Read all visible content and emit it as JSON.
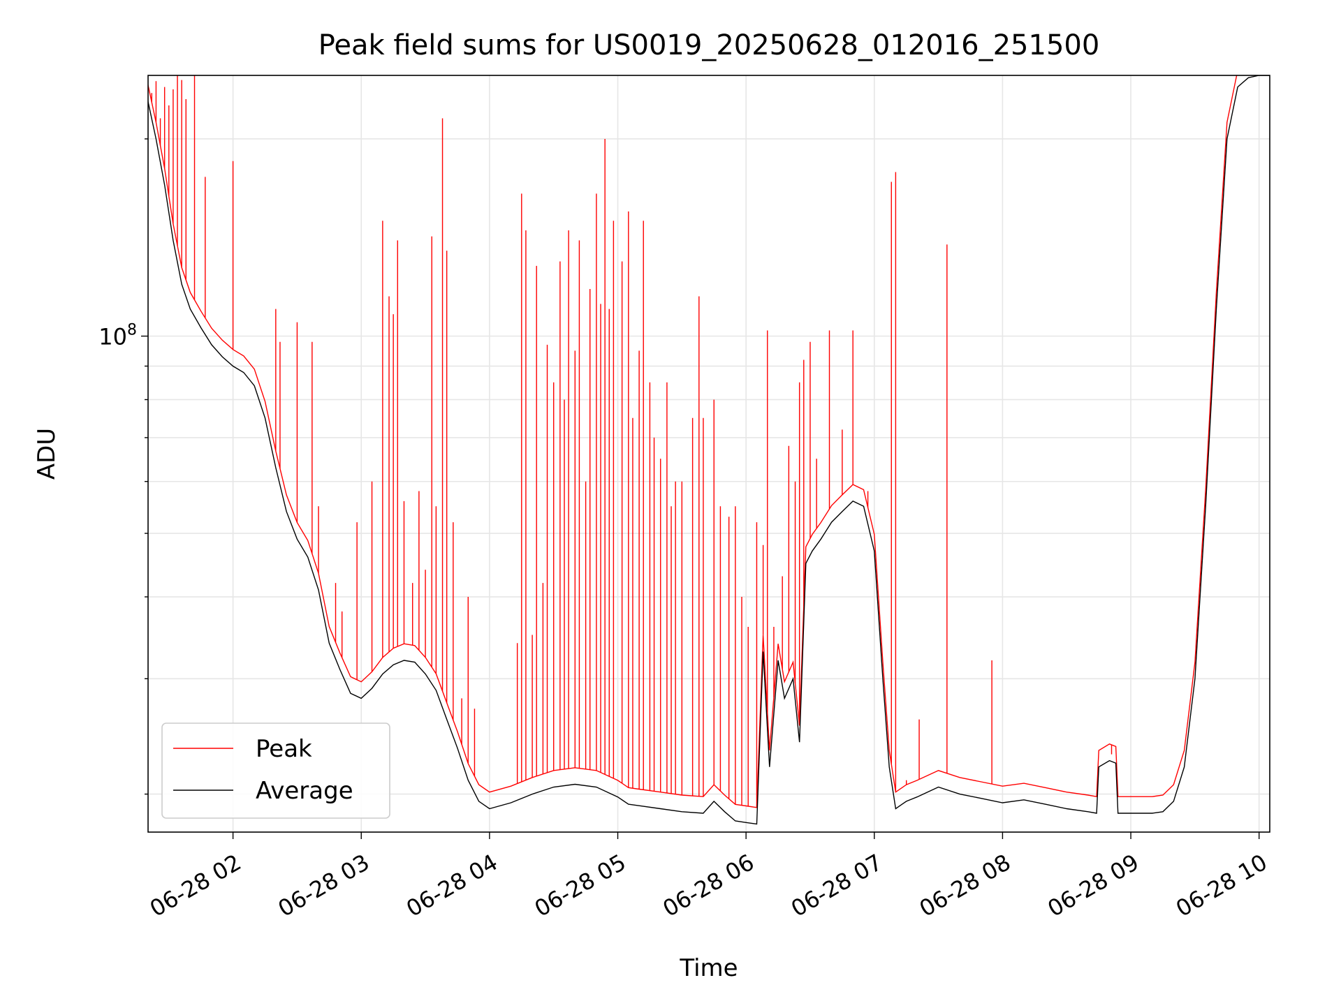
{
  "chart_data": {
    "type": "line",
    "title": "Peak field sums for US0019_20250628_012016_251500",
    "xlabel": "Time",
    "ylabel": "ADU",
    "y_scale": "log",
    "ylim": [
      17500000,
      250000000
    ],
    "xlim": [
      "2025-06-28 01:20:16",
      "2025-06-28 10:05:00"
    ],
    "x_ticks": [
      {
        "label": "06-28 02",
        "value": "2025-06-28 02:00"
      },
      {
        "label": "06-28 03",
        "value": "2025-06-28 03:00"
      },
      {
        "label": "06-28 04",
        "value": "2025-06-28 04:00"
      },
      {
        "label": "06-28 05",
        "value": "2025-06-28 05:00"
      },
      {
        "label": "06-28 06",
        "value": "2025-06-28 06:00"
      },
      {
        "label": "06-28 07",
        "value": "2025-06-28 07:00"
      },
      {
        "label": "06-28 08",
        "value": "2025-06-28 08:00"
      },
      {
        "label": "06-28 09",
        "value": "2025-06-28 09:00"
      },
      {
        "label": "06-28 10",
        "value": "2025-06-28 10:00"
      }
    ],
    "y_ticks": [
      {
        "label_base": "10",
        "label_exp": "8",
        "value": 100000000
      }
    ],
    "grid": true,
    "legend_position": "lower-left",
    "colors": {
      "peak": "#ff0000",
      "average": "#000000",
      "grid": "#e6e6e6"
    },
    "series": [
      {
        "name": "Average",
        "color": "#000000",
        "x": [
          "2025-06-28 01:20",
          "2025-06-28 01:24",
          "2025-06-28 01:28",
          "2025-06-28 01:32",
          "2025-06-28 01:36",
          "2025-06-28 01:40",
          "2025-06-28 01:45",
          "2025-06-28 01:50",
          "2025-06-28 01:55",
          "2025-06-28 02:00",
          "2025-06-28 02:05",
          "2025-06-28 02:10",
          "2025-06-28 02:15",
          "2025-06-28 02:20",
          "2025-06-28 02:25",
          "2025-06-28 02:30",
          "2025-06-28 02:35",
          "2025-06-28 02:40",
          "2025-06-28 02:45",
          "2025-06-28 02:50",
          "2025-06-28 02:55",
          "2025-06-28 03:00",
          "2025-06-28 03:05",
          "2025-06-28 03:10",
          "2025-06-28 03:15",
          "2025-06-28 03:20",
          "2025-06-28 03:25",
          "2025-06-28 03:30",
          "2025-06-28 03:35",
          "2025-06-28 03:40",
          "2025-06-28 03:45",
          "2025-06-28 03:50",
          "2025-06-28 03:55",
          "2025-06-28 04:00",
          "2025-06-28 04:10",
          "2025-06-28 04:20",
          "2025-06-28 04:30",
          "2025-06-28 04:40",
          "2025-06-28 04:50",
          "2025-06-28 05:00",
          "2025-06-28 05:05",
          "2025-06-28 05:10",
          "2025-06-28 05:20",
          "2025-06-28 05:30",
          "2025-06-28 05:40",
          "2025-06-28 05:45",
          "2025-06-28 05:50",
          "2025-06-28 05:55",
          "2025-06-28 06:00",
          "2025-06-28 06:05",
          "2025-06-28 06:08",
          "2025-06-28 06:11",
          "2025-06-28 06:15",
          "2025-06-28 06:18",
          "2025-06-28 06:22",
          "2025-06-28 06:25",
          "2025-06-28 06:28",
          "2025-06-28 06:31",
          "2025-06-28 06:35",
          "2025-06-28 06:40",
          "2025-06-28 06:45",
          "2025-06-28 06:50",
          "2025-06-28 06:55",
          "2025-06-28 07:00",
          "2025-06-28 07:04",
          "2025-06-28 07:07",
          "2025-06-28 07:10",
          "2025-06-28 07:13",
          "2025-06-28 07:15",
          "2025-06-28 07:20",
          "2025-06-28 07:30",
          "2025-06-28 07:40",
          "2025-06-28 07:50",
          "2025-06-28 08:00",
          "2025-06-28 08:10",
          "2025-06-28 08:20",
          "2025-06-28 08:30",
          "2025-06-28 08:40",
          "2025-06-28 08:44",
          "2025-06-28 08:45",
          "2025-06-28 08:50",
          "2025-06-28 08:53",
          "2025-06-28 08:54",
          "2025-06-28 09:00",
          "2025-06-28 09:10",
          "2025-06-28 09:15",
          "2025-06-28 09:20",
          "2025-06-28 09:25",
          "2025-06-28 09:30",
          "2025-06-28 09:35",
          "2025-06-28 09:40",
          "2025-06-28 09:45",
          "2025-06-28 09:50",
          "2025-06-28 09:55",
          "2025-06-28 10:00",
          "2025-06-28 10:05"
        ],
        "y": [
          230000000,
          200000000,
          170000000,
          140000000,
          120000000,
          110000000,
          103000000,
          97000000,
          93000000,
          90000000,
          88000000,
          84000000,
          75000000,
          63000000,
          54000000,
          49000000,
          46000000,
          41000000,
          34000000,
          31000000,
          28500000,
          28000000,
          29000000,
          30500000,
          31500000,
          32000000,
          31800000,
          30500000,
          28800000,
          26000000,
          23500000,
          21000000,
          19500000,
          19000000,
          19400000,
          20000000,
          20500000,
          20700000,
          20500000,
          19800000,
          19300000,
          19200000,
          19000000,
          18800000,
          18700000,
          19500000,
          18800000,
          18200000,
          18100000,
          18000000,
          33000000,
          22000000,
          32000000,
          28000000,
          30000000,
          24000000,
          45000000,
          47000000,
          49000000,
          52000000,
          54000000,
          56000000,
          55000000,
          47000000,
          30000000,
          22000000,
          19000000,
          19300000,
          19500000,
          19800000,
          20500000,
          20000000,
          19700000,
          19400000,
          19600000,
          19300000,
          19000000,
          18800000,
          18700000,
          22000000,
          22500000,
          22300000,
          18700000,
          18700000,
          18700000,
          18800000,
          19500000,
          22000000,
          30000000,
          55000000,
          110000000,
          200000000,
          240000000,
          248000000,
          250000000,
          250000000
        ]
      },
      {
        "name": "Peak",
        "color": "#ff0000",
        "spikes": [
          {
            "t": "2025-06-28 01:22",
            "v": 235000000
          },
          {
            "t": "2025-06-28 01:24",
            "v": 245000000
          },
          {
            "t": "2025-06-28 01:26",
            "v": 215000000
          },
          {
            "t": "2025-06-28 01:28",
            "v": 240000000
          },
          {
            "t": "2025-06-28 01:30",
            "v": 225000000
          },
          {
            "t": "2025-06-28 01:32",
            "v": 238000000
          },
          {
            "t": "2025-06-28 01:34",
            "v": 250000000
          },
          {
            "t": "2025-06-28 01:36",
            "v": 246000000
          },
          {
            "t": "2025-06-28 01:38",
            "v": 230000000
          },
          {
            "t": "2025-06-28 01:42",
            "v": 250000000
          },
          {
            "t": "2025-06-28 01:47",
            "v": 175000000
          },
          {
            "t": "2025-06-28 02:00",
            "v": 185000000
          },
          {
            "t": "2025-06-28 02:20",
            "v": 110000000
          },
          {
            "t": "2025-06-28 02:22",
            "v": 98000000
          },
          {
            "t": "2025-06-28 02:30",
            "v": 105000000
          },
          {
            "t": "2025-06-28 02:37",
            "v": 98000000
          },
          {
            "t": "2025-06-28 02:40",
            "v": 55000000
          },
          {
            "t": "2025-06-28 02:48",
            "v": 42000000
          },
          {
            "t": "2025-06-28 02:51",
            "v": 38000000
          },
          {
            "t": "2025-06-28 02:58",
            "v": 52000000
          },
          {
            "t": "2025-06-28 03:05",
            "v": 60000000
          },
          {
            "t": "2025-06-28 03:10",
            "v": 150000000
          },
          {
            "t": "2025-06-28 03:13",
            "v": 115000000
          },
          {
            "t": "2025-06-28 03:15",
            "v": 108000000
          },
          {
            "t": "2025-06-28 03:17",
            "v": 140000000
          },
          {
            "t": "2025-06-28 03:20",
            "v": 56000000
          },
          {
            "t": "2025-06-28 03:24",
            "v": 42000000
          },
          {
            "t": "2025-06-28 03:27",
            "v": 58000000
          },
          {
            "t": "2025-06-28 03:30",
            "v": 44000000
          },
          {
            "t": "2025-06-28 03:33",
            "v": 142000000
          },
          {
            "t": "2025-06-28 03:35",
            "v": 55000000
          },
          {
            "t": "2025-06-28 03:38",
            "v": 215000000
          },
          {
            "t": "2025-06-28 03:40",
            "v": 135000000
          },
          {
            "t": "2025-06-28 03:43",
            "v": 52000000
          },
          {
            "t": "2025-06-28 03:47",
            "v": 28000000
          },
          {
            "t": "2025-06-28 03:50",
            "v": 40000000
          },
          {
            "t": "2025-06-28 03:53",
            "v": 27000000
          },
          {
            "t": "2025-06-28 04:13",
            "v": 34000000
          },
          {
            "t": "2025-06-28 04:15",
            "v": 165000000
          },
          {
            "t": "2025-06-28 04:17",
            "v": 145000000
          },
          {
            "t": "2025-06-28 04:20",
            "v": 35000000
          },
          {
            "t": "2025-06-28 04:22",
            "v": 128000000
          },
          {
            "t": "2025-06-28 04:25",
            "v": 42000000
          },
          {
            "t": "2025-06-28 04:27",
            "v": 97000000
          },
          {
            "t": "2025-06-28 04:30",
            "v": 85000000
          },
          {
            "t": "2025-06-28 04:33",
            "v": 130000000
          },
          {
            "t": "2025-06-28 04:35",
            "v": 80000000
          },
          {
            "t": "2025-06-28 04:37",
            "v": 145000000
          },
          {
            "t": "2025-06-28 04:40",
            "v": 95000000
          },
          {
            "t": "2025-06-28 04:42",
            "v": 140000000
          },
          {
            "t": "2025-06-28 04:45",
            "v": 60000000
          },
          {
            "t": "2025-06-28 04:47",
            "v": 118000000
          },
          {
            "t": "2025-06-28 04:50",
            "v": 165000000
          },
          {
            "t": "2025-06-28 04:52",
            "v": 112000000
          },
          {
            "t": "2025-06-28 04:54",
            "v": 200000000
          },
          {
            "t": "2025-06-28 04:56",
            "v": 110000000
          },
          {
            "t": "2025-06-28 04:58",
            "v": 150000000
          },
          {
            "t": "2025-06-28 05:02",
            "v": 130000000
          },
          {
            "t": "2025-06-28 05:05",
            "v": 155000000
          },
          {
            "t": "2025-06-28 05:07",
            "v": 75000000
          },
          {
            "t": "2025-06-28 05:10",
            "v": 95000000
          },
          {
            "t": "2025-06-28 05:12",
            "v": 150000000
          },
          {
            "t": "2025-06-28 05:15",
            "v": 85000000
          },
          {
            "t": "2025-06-28 05:17",
            "v": 70000000
          },
          {
            "t": "2025-06-28 05:20",
            "v": 65000000
          },
          {
            "t": "2025-06-28 05:23",
            "v": 85000000
          },
          {
            "t": "2025-06-28 05:25",
            "v": 55000000
          },
          {
            "t": "2025-06-28 05:27",
            "v": 60000000
          },
          {
            "t": "2025-06-28 05:30",
            "v": 60000000
          },
          {
            "t": "2025-06-28 05:35",
            "v": 75000000
          },
          {
            "t": "2025-06-28 05:38",
            "v": 115000000
          },
          {
            "t": "2025-06-28 05:40",
            "v": 75000000
          },
          {
            "t": "2025-06-28 05:45",
            "v": 80000000
          },
          {
            "t": "2025-06-28 05:48",
            "v": 55000000
          },
          {
            "t": "2025-06-28 05:52",
            "v": 53000000
          },
          {
            "t": "2025-06-28 05:55",
            "v": 55000000
          },
          {
            "t": "2025-06-28 05:58",
            "v": 40000000
          },
          {
            "t": "2025-06-28 06:01",
            "v": 36000000
          },
          {
            "t": "2025-06-28 06:05",
            "v": 52000000
          },
          {
            "t": "2025-06-28 06:08",
            "v": 48000000
          },
          {
            "t": "2025-06-28 06:10",
            "v": 102000000
          },
          {
            "t": "2025-06-28 06:13",
            "v": 36000000
          },
          {
            "t": "2025-06-28 06:17",
            "v": 43000000
          },
          {
            "t": "2025-06-28 06:20",
            "v": 68000000
          },
          {
            "t": "2025-06-28 06:23",
            "v": 60000000
          },
          {
            "t": "2025-06-28 06:25",
            "v": 85000000
          },
          {
            "t": "2025-06-28 06:27",
            "v": 92000000
          },
          {
            "t": "2025-06-28 06:30",
            "v": 98000000
          },
          {
            "t": "2025-06-28 06:33",
            "v": 65000000
          },
          {
            "t": "2025-06-28 06:39",
            "v": 102000000
          },
          {
            "t": "2025-06-28 06:45",
            "v": 72000000
          },
          {
            "t": "2025-06-28 06:50",
            "v": 102000000
          },
          {
            "t": "2025-06-28 06:57",
            "v": 58000000
          },
          {
            "t": "2025-06-28 07:08",
            "v": 172000000
          },
          {
            "t": "2025-06-28 07:10",
            "v": 178000000
          },
          {
            "t": "2025-06-28 07:15",
            "v": 21000000
          },
          {
            "t": "2025-06-28 07:21",
            "v": 26000000
          },
          {
            "t": "2025-06-28 07:34",
            "v": 138000000
          },
          {
            "t": "2025-06-28 07:55",
            "v": 32000000
          },
          {
            "t": "2025-06-28 08:51",
            "v": 23000000
          }
        ]
      }
    ]
  },
  "legend": {
    "peak_label": "Peak",
    "average_label": "Average"
  }
}
